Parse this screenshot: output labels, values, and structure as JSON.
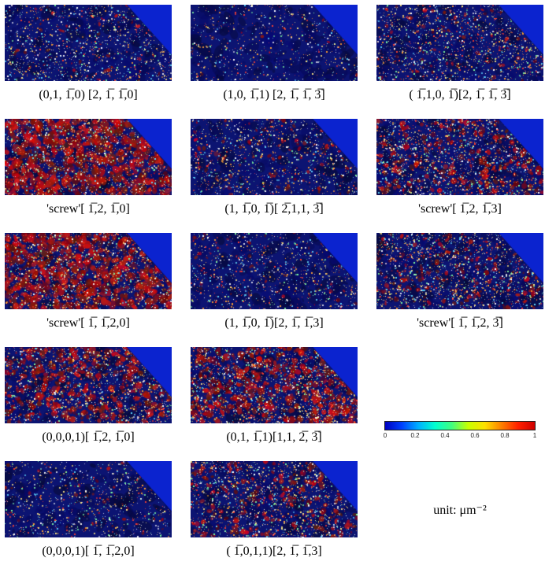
{
  "figure": {
    "background": "#ffffff",
    "colors": {
      "base": "#0c1472",
      "corner": "#0b23cf"
    },
    "panels": [
      {
        "caption": "(0,1, 1̅,0) [2, 1̅, 1̅,0]",
        "texture": {
          "red": 0.22,
          "speckles": 1300,
          "seed": 1
        }
      },
      {
        "caption": "(1,0, 1̅,1) [2, 1̅, 1̅, 3̅]",
        "texture": {
          "red": 0.1,
          "speckles": 700,
          "seed": 2
        }
      },
      {
        "caption": "( 1̅,1,0, 1̅)[2, 1̅, 1̅, 3̅]",
        "texture": {
          "red": 0.28,
          "speckles": 1500,
          "seed": 3
        }
      },
      {
        "caption": "'screw'[ 1̅,2, 1̅,0]",
        "texture": {
          "red": 0.95,
          "speckles": 1400,
          "seed": 4
        }
      },
      {
        "caption": "(1, 1̅,0, 1̅)[ 2̅,1,1, 3̅]",
        "texture": {
          "red": 0.3,
          "speckles": 1100,
          "seed": 5
        }
      },
      {
        "caption": "'screw'[ 1̅,2, 1̅,3]",
        "texture": {
          "red": 0.55,
          "speckles": 1700,
          "seed": 6
        }
      },
      {
        "caption": "'screw'[ 1̅, 1̅,2,0]",
        "texture": {
          "red": 0.92,
          "speckles": 1400,
          "seed": 7
        }
      },
      {
        "caption": "(1, 1̅,0, 1̅)[2, 1̅, 1̅,3]",
        "texture": {
          "red": 0.22,
          "speckles": 1000,
          "seed": 8
        }
      },
      {
        "caption": "'screw'[ 1̅, 1̅,2, 3̅]",
        "texture": {
          "red": 0.45,
          "speckles": 1600,
          "seed": 9
        }
      },
      {
        "caption": "(0,0,0,1)[ 1̅,2, 1̅,0]",
        "texture": {
          "red": 0.7,
          "speckles": 1400,
          "seed": 10
        }
      },
      {
        "caption": "(0,1, 1̅,1)[1,1, 2̅, 3̅]",
        "texture": {
          "red": 0.75,
          "speckles": 1700,
          "seed": 11
        }
      },
      {
        "caption": "(0,0,0,1)[ 1̅, 1̅,2,0]",
        "texture": {
          "red": 0.18,
          "speckles": 900,
          "seed": 12
        }
      },
      {
        "caption": "( 1̅,0,1,1)[2, 1̅, 1̅,3]",
        "texture": {
          "red": 0.5,
          "speckles": 1600,
          "seed": 13
        }
      }
    ],
    "colorbar": {
      "ticks": [
        "0",
        "0.2",
        "0.4",
        "0.6",
        "0.8",
        "1"
      ],
      "gradient": [
        "#0000bf",
        "#0040ff",
        "#00b0ff",
        "#00ffd0",
        "#40ff80",
        "#c8ff00",
        "#ffe000",
        "#ff8000",
        "#ff2000",
        "#cf0000"
      ]
    },
    "unit_label": "unit: μm⁻²"
  }
}
